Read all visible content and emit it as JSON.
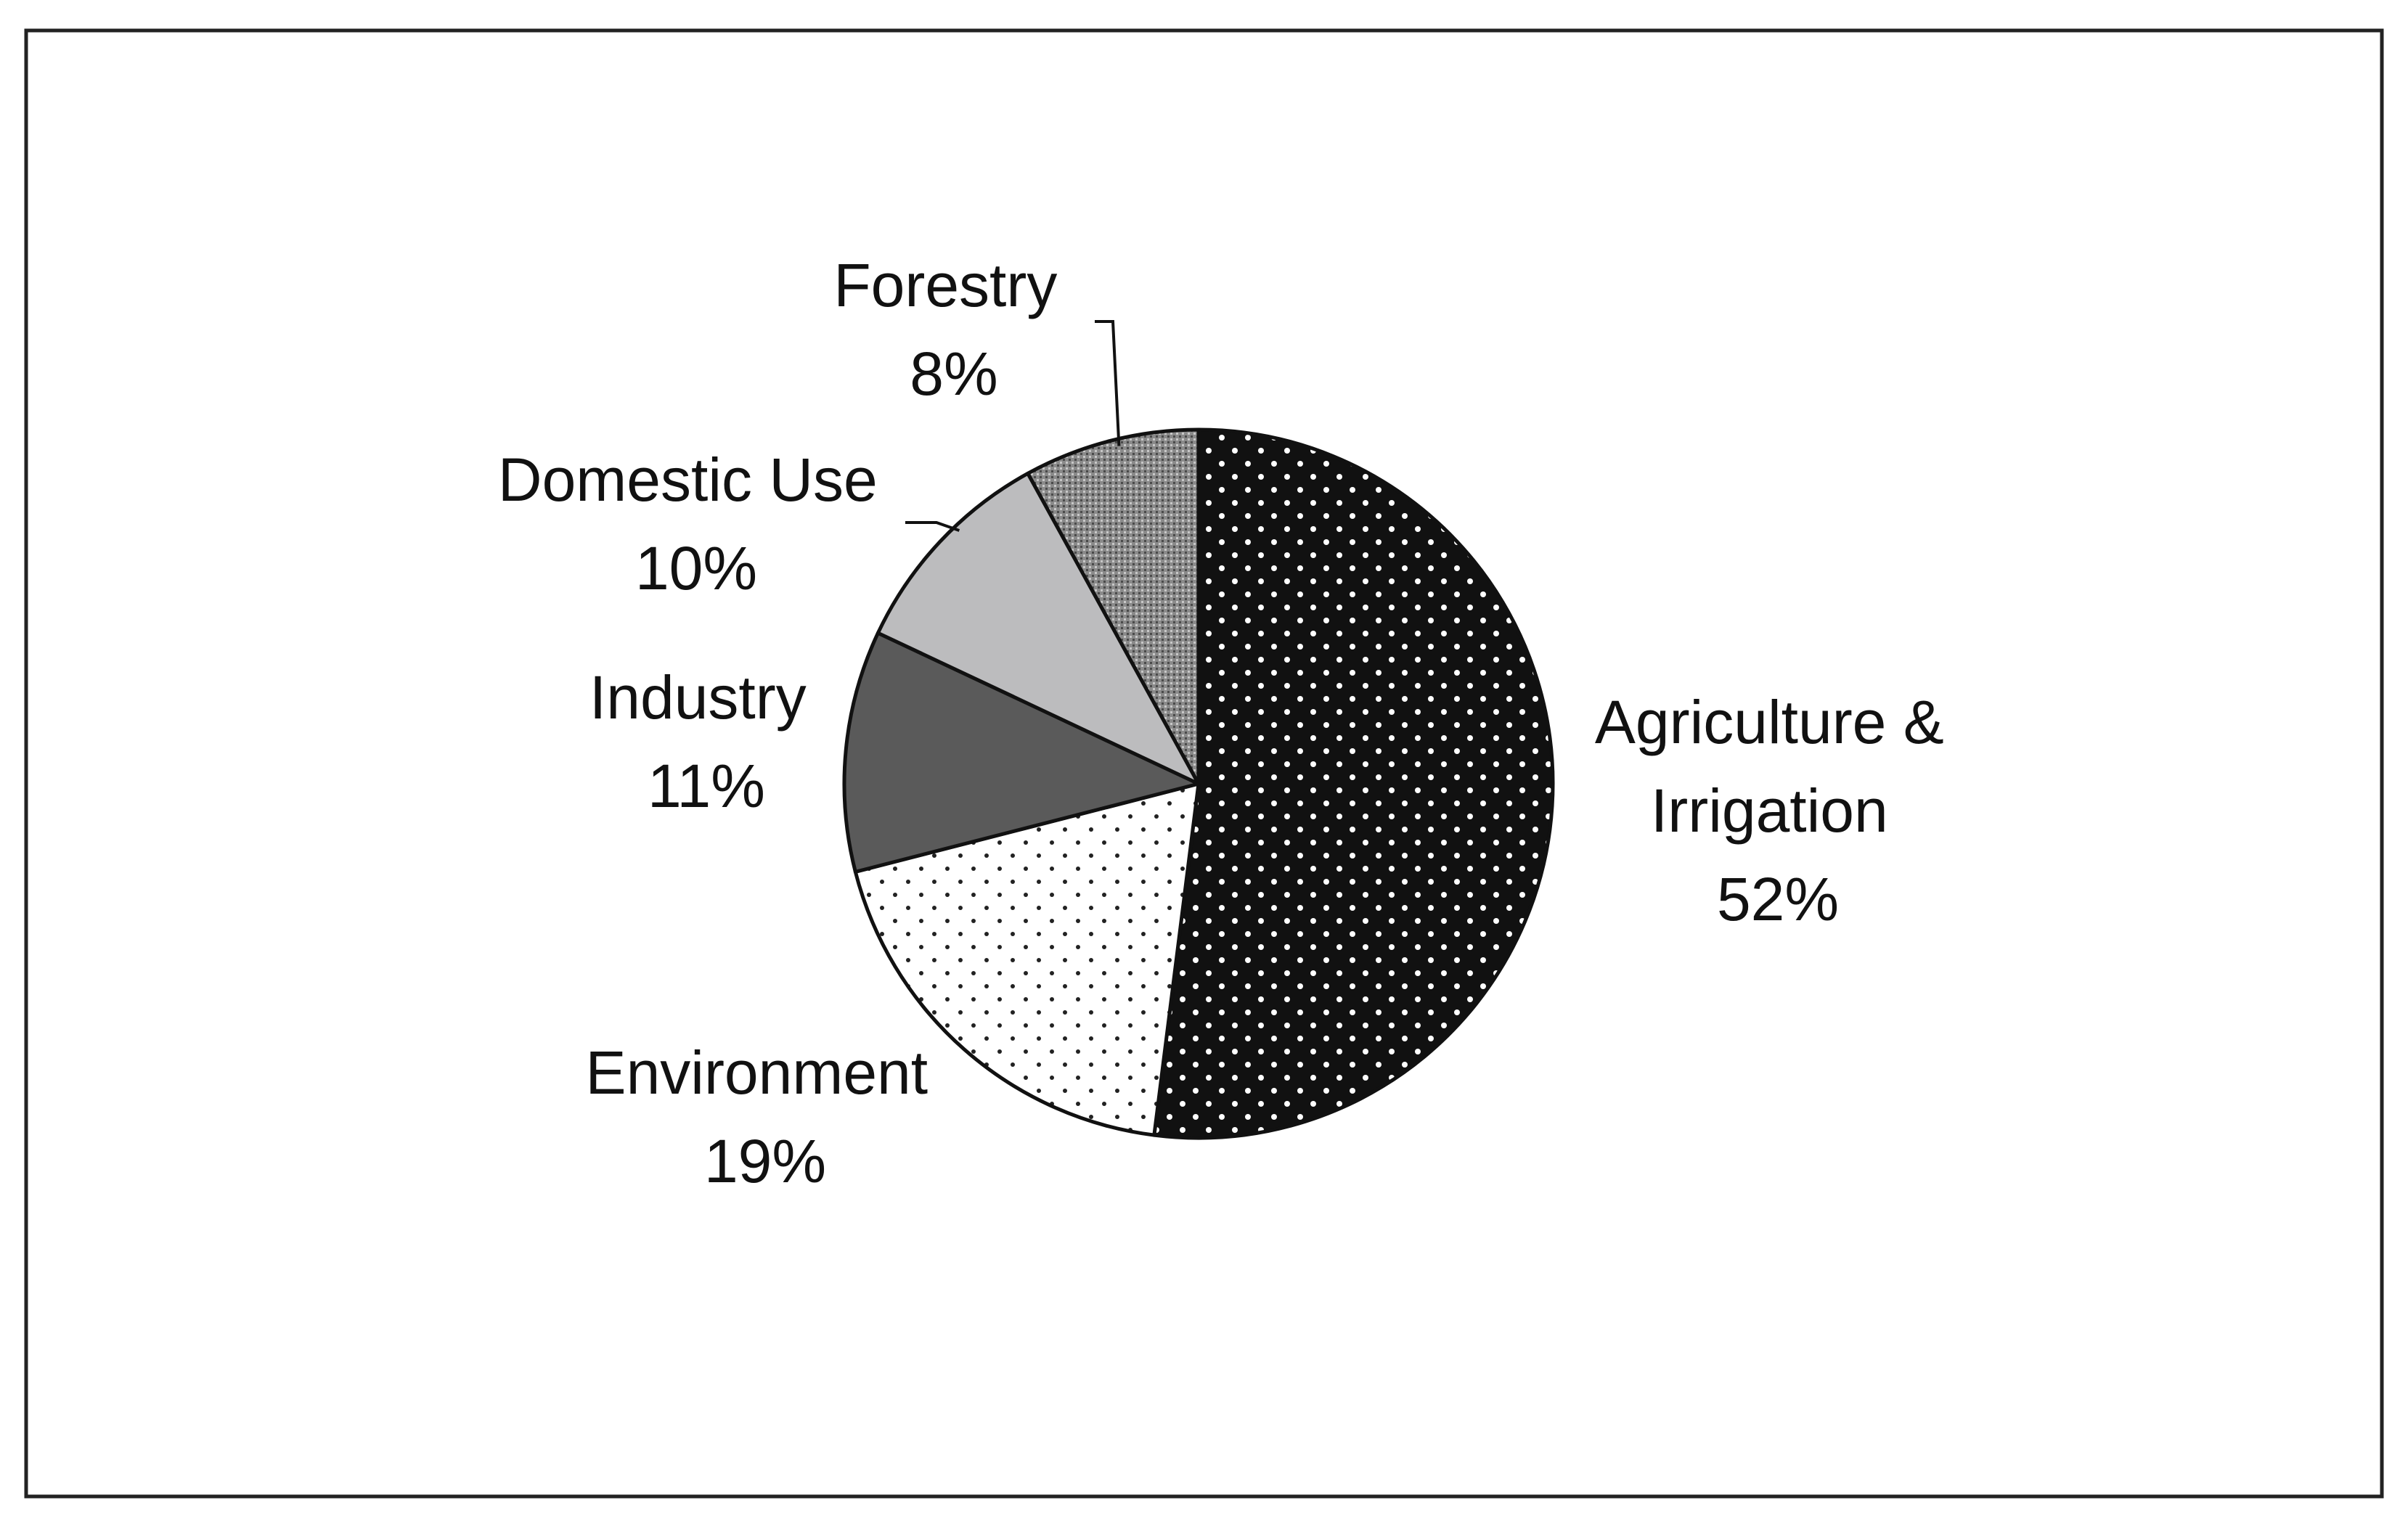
{
  "chart_data": {
    "type": "pie",
    "title": "",
    "start_angle_deg": 0,
    "direction": "clockwise",
    "slices": [
      {
        "name": "Agriculture & Irrigation",
        "label_lines": [
          "Agriculture &",
          "Irrigation"
        ],
        "percent_label": "52%",
        "value": 52,
        "pattern": "black-white-dots"
      },
      {
        "name": "Environment",
        "label_lines": [
          "Environment"
        ],
        "percent_label": "19%",
        "value": 19,
        "pattern": "white-black-dots"
      },
      {
        "name": "Industry",
        "label_lines": [
          "Industry"
        ],
        "percent_label": "11%",
        "value": 11,
        "pattern": "dark-gray"
      },
      {
        "name": "Domestic Use",
        "label_lines": [
          "Domestic Use"
        ],
        "percent_label": "10%",
        "value": 10,
        "pattern": "light-gray"
      },
      {
        "name": "Forestry",
        "label_lines": [
          "Forestry"
        ],
        "percent_label": "8%",
        "value": 8,
        "pattern": "gray-stipple"
      }
    ],
    "legend": "none",
    "labels_position": "outside"
  },
  "colors": {
    "dark_slice": "#111111",
    "industry": "#5a5a5a",
    "domestic": "#bcbcbe",
    "forestry": "#8a8a8a",
    "white": "#ffffff"
  }
}
